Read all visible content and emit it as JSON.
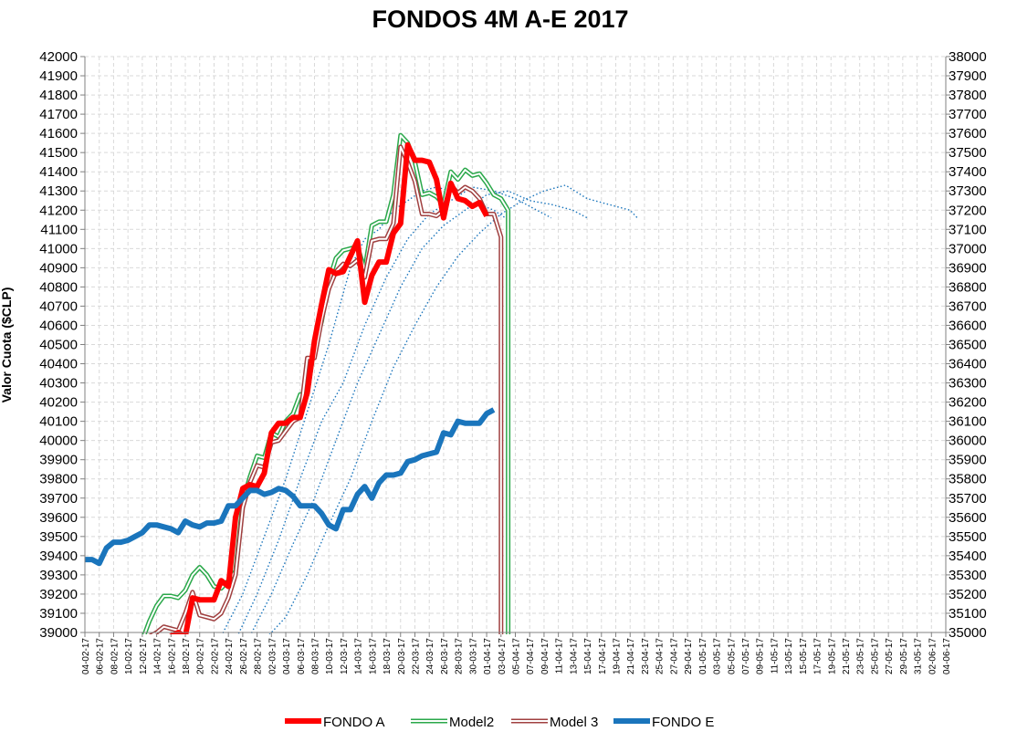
{
  "chart_data": {
    "type": "line",
    "title": "FONDOS 4M A-E 2017",
    "ylabel": "Valor Cuota ($CLP)",
    "xlabel": "",
    "ylim_left": [
      39000,
      42000
    ],
    "ylim_right": [
      35000,
      38000
    ],
    "y_ticks_left": [
      "39000",
      "39100",
      "39200",
      "39300",
      "39400",
      "39500",
      "39600",
      "39700",
      "39800",
      "39900",
      "40000",
      "40100",
      "40200",
      "40300",
      "40400",
      "40500",
      "40600",
      "40700",
      "40800",
      "40900",
      "41000",
      "41100",
      "41200",
      "41300",
      "41400",
      "41500",
      "41600",
      "41700",
      "41800",
      "41900",
      "42000"
    ],
    "y_ticks_right": [
      "35000",
      "35100",
      "35200",
      "35300",
      "35400",
      "35500",
      "35600",
      "35700",
      "35800",
      "35900",
      "36000",
      "36100",
      "36200",
      "36300",
      "36400",
      "36500",
      "36600",
      "36700",
      "36800",
      "36900",
      "37000",
      "37100",
      "37200",
      "37300",
      "37400",
      "37500",
      "37600",
      "37700",
      "37800",
      "37900",
      "38000"
    ],
    "x_ticks": [
      "04-02-17",
      "06-02-17",
      "08-02-17",
      "10-02-17",
      "12-02-17",
      "14-02-17",
      "16-02-17",
      "18-02-17",
      "20-02-17",
      "22-02-17",
      "24-02-17",
      "26-02-17",
      "28-02-17",
      "02-03-17",
      "04-03-17",
      "06-03-17",
      "08-03-17",
      "10-03-17",
      "12-03-17",
      "14-03-17",
      "16-03-17",
      "18-03-17",
      "20-03-17",
      "22-03-17",
      "24-03-17",
      "26-03-17",
      "28-03-17",
      "30-03-17",
      "01-04-17",
      "03-04-17",
      "05-04-17",
      "07-04-17",
      "09-04-17",
      "11-04-17",
      "13-04-17",
      "15-04-17",
      "17-04-17",
      "19-04-17",
      "21-04-17",
      "23-04-17",
      "25-04-17",
      "27-04-17",
      "29-04-17",
      "01-05-17",
      "03-05-17",
      "05-05-17",
      "07-05-17",
      "09-05-17",
      "11-05-17",
      "13-05-17",
      "15-05-17",
      "17-05-17",
      "19-05-17",
      "21-05-17",
      "23-05-17",
      "25-05-17",
      "27-05-17",
      "29-05-17",
      "31-05-17",
      "02-06-17",
      "04-06-17"
    ],
    "grid": true,
    "legend_position": "bottom",
    "series": [
      {
        "name": "FONDO A",
        "axis": "left",
        "color": "#ff0000",
        "style": "thick",
        "points": [
          [
            11,
            38950
          ],
          [
            12,
            38980
          ],
          [
            13,
            39000
          ],
          [
            14,
            38980
          ],
          [
            15,
            39180
          ],
          [
            16,
            39170
          ],
          [
            17,
            39170
          ],
          [
            18,
            39170
          ],
          [
            19,
            39270
          ],
          [
            20,
            39240
          ],
          [
            21,
            39600
          ],
          [
            22,
            39750
          ],
          [
            23,
            39770
          ],
          [
            24,
            39760
          ],
          [
            25,
            39830
          ],
          [
            26,
            40040
          ],
          [
            27,
            40090
          ],
          [
            28,
            40090
          ],
          [
            29,
            40120
          ],
          [
            30,
            40120
          ],
          [
            31,
            40250
          ],
          [
            32,
            40520
          ],
          [
            33,
            40710
          ],
          [
            34,
            40890
          ],
          [
            35,
            40870
          ],
          [
            36,
            40880
          ],
          [
            37,
            40960
          ],
          [
            38,
            41040
          ],
          [
            39,
            40720
          ],
          [
            40,
            40860
          ],
          [
            41,
            40930
          ],
          [
            42,
            40930
          ],
          [
            43,
            41080
          ],
          [
            44,
            41130
          ],
          [
            45,
            41540
          ],
          [
            46,
            41460
          ],
          [
            47,
            41460
          ],
          [
            48,
            41450
          ],
          [
            49,
            41360
          ],
          [
            50,
            41160
          ],
          [
            51,
            41340
          ],
          [
            52,
            41260
          ],
          [
            53,
            41250
          ],
          [
            54,
            41220
          ],
          [
            55,
            41240
          ],
          [
            56,
            41170
          ]
        ]
      },
      {
        "name": "Model2",
        "axis": "left",
        "color": "#2aa84a",
        "style": "double",
        "points": [
          [
            8,
            38960
          ],
          [
            9,
            39060
          ],
          [
            10,
            39140
          ],
          [
            11,
            39190
          ],
          [
            12,
            39190
          ],
          [
            13,
            39180
          ],
          [
            14,
            39220
          ],
          [
            15,
            39300
          ],
          [
            16,
            39340
          ],
          [
            17,
            39300
          ],
          [
            18,
            39240
          ],
          [
            19,
            39230
          ],
          [
            20,
            39270
          ],
          [
            21,
            39320
          ],
          [
            22,
            39680
          ],
          [
            23,
            39810
          ],
          [
            24,
            39920
          ],
          [
            25,
            39910
          ],
          [
            26,
            40040
          ],
          [
            27,
            40020
          ],
          [
            28,
            40100
          ],
          [
            29,
            40140
          ],
          [
            30,
            40240
          ],
          [
            31,
            40240
          ],
          [
            32,
            40500
          ],
          [
            33,
            40620
          ],
          [
            34,
            40830
          ],
          [
            35,
            40950
          ],
          [
            36,
            40990
          ],
          [
            37,
            41000
          ],
          [
            38,
            41010
          ],
          [
            39,
            40890
          ],
          [
            40,
            41120
          ],
          [
            41,
            41140
          ],
          [
            42,
            41140
          ],
          [
            43,
            41280
          ],
          [
            44,
            41590
          ],
          [
            45,
            41550
          ],
          [
            46,
            41450
          ],
          [
            47,
            41280
          ],
          [
            48,
            41290
          ],
          [
            49,
            41270
          ],
          [
            50,
            41230
          ],
          [
            51,
            41400
          ],
          [
            52,
            41360
          ],
          [
            53,
            41410
          ],
          [
            54,
            41380
          ],
          [
            55,
            41390
          ],
          [
            56,
            41340
          ],
          [
            57,
            41280
          ],
          [
            58,
            41260
          ],
          [
            59,
            41200
          ],
          [
            59,
            38960
          ]
        ]
      },
      {
        "name": "Model 3",
        "axis": "left",
        "color": "#a04040",
        "style": "double",
        "points": [
          [
            9,
            38980
          ],
          [
            10,
            39000
          ],
          [
            11,
            39030
          ],
          [
            12,
            39020
          ],
          [
            13,
            39010
          ],
          [
            14,
            39100
          ],
          [
            15,
            39210
          ],
          [
            16,
            39090
          ],
          [
            17,
            39080
          ],
          [
            18,
            39070
          ],
          [
            19,
            39100
          ],
          [
            20,
            39180
          ],
          [
            21,
            39300
          ],
          [
            22,
            39650
          ],
          [
            23,
            39780
          ],
          [
            24,
            39870
          ],
          [
            25,
            39860
          ],
          [
            26,
            39990
          ],
          [
            27,
            40000
          ],
          [
            28,
            40050
          ],
          [
            29,
            40100
          ],
          [
            30,
            40120
          ],
          [
            31,
            40430
          ],
          [
            32,
            40430
          ],
          [
            33,
            40630
          ],
          [
            34,
            40790
          ],
          [
            35,
            40880
          ],
          [
            36,
            40920
          ],
          [
            37,
            40910
          ],
          [
            38,
            40940
          ],
          [
            39,
            40850
          ],
          [
            40,
            41040
          ],
          [
            41,
            41050
          ],
          [
            42,
            41050
          ],
          [
            43,
            41130
          ],
          [
            44,
            41530
          ],
          [
            45,
            41450
          ],
          [
            46,
            41350
          ],
          [
            47,
            41180
          ],
          [
            48,
            41180
          ],
          [
            49,
            41170
          ],
          [
            50,
            41200
          ],
          [
            51,
            41330
          ],
          [
            52,
            41290
          ],
          [
            53,
            41320
          ],
          [
            54,
            41300
          ],
          [
            55,
            41260
          ],
          [
            56,
            41180
          ],
          [
            57,
            41180
          ],
          [
            58,
            41060
          ],
          [
            58,
            38960
          ]
        ]
      },
      {
        "name": "FONDO E",
        "axis": "right",
        "color": "#1a75bc",
        "style": "thick",
        "points": [
          [
            0,
            35380
          ],
          [
            1,
            35380
          ],
          [
            2,
            35360
          ],
          [
            3,
            35440
          ],
          [
            4,
            35470
          ],
          [
            5,
            35470
          ],
          [
            6,
            35480
          ],
          [
            7,
            35500
          ],
          [
            8,
            35520
          ],
          [
            9,
            35560
          ],
          [
            10,
            35560
          ],
          [
            11,
            35550
          ],
          [
            12,
            35540
          ],
          [
            13,
            35520
          ],
          [
            14,
            35580
          ],
          [
            15,
            35560
          ],
          [
            16,
            35550
          ],
          [
            17,
            35570
          ],
          [
            18,
            35570
          ],
          [
            19,
            35580
          ],
          [
            20,
            35660
          ],
          [
            21,
            35660
          ],
          [
            22,
            35700
          ],
          [
            23,
            35740
          ],
          [
            24,
            35740
          ],
          [
            25,
            35720
          ],
          [
            26,
            35730
          ],
          [
            27,
            35750
          ],
          [
            28,
            35740
          ],
          [
            29,
            35710
          ],
          [
            30,
            35660
          ],
          [
            31,
            35660
          ],
          [
            32,
            35660
          ],
          [
            33,
            35620
          ],
          [
            34,
            35560
          ],
          [
            35,
            35540
          ],
          [
            36,
            35640
          ],
          [
            37,
            35640
          ],
          [
            38,
            35720
          ],
          [
            39,
            35760
          ],
          [
            40,
            35700
          ],
          [
            41,
            35780
          ],
          [
            42,
            35820
          ],
          [
            43,
            35820
          ],
          [
            44,
            35830
          ],
          [
            45,
            35890
          ],
          [
            46,
            35900
          ],
          [
            47,
            35920
          ],
          [
            48,
            35930
          ],
          [
            49,
            35940
          ],
          [
            50,
            36040
          ],
          [
            51,
            36030
          ],
          [
            52,
            36100
          ],
          [
            53,
            36090
          ],
          [
            54,
            36090
          ],
          [
            55,
            36090
          ],
          [
            56,
            36140
          ],
          [
            57,
            36160
          ]
        ]
      },
      {
        "name": "",
        "axis": "left",
        "color": "#1a75bc",
        "style": "dotted",
        "points": [
          [
            19,
            38980
          ],
          [
            22,
            39200
          ],
          [
            25,
            39500
          ],
          [
            28,
            39800
          ],
          [
            31,
            40150
          ],
          [
            34,
            40500
          ],
          [
            37,
            40900
          ],
          [
            39,
            41050
          ],
          [
            41,
            41100
          ],
          [
            43,
            41200
          ],
          [
            45,
            41250
          ],
          [
            47,
            41300
          ],
          [
            49,
            41320
          ],
          [
            51,
            41300
          ],
          [
            53,
            41250
          ],
          [
            55,
            41230
          ],
          [
            57,
            41200
          ],
          [
            59,
            41150
          ]
        ]
      },
      {
        "name": "",
        "axis": "left",
        "color": "#1a75bc",
        "style": "dotted",
        "points": [
          [
            21,
            38960
          ],
          [
            24,
            39200
          ],
          [
            27,
            39480
          ],
          [
            30,
            39800
          ],
          [
            33,
            40100
          ],
          [
            36,
            40300
          ],
          [
            39,
            40600
          ],
          [
            42,
            40850
          ],
          [
            45,
            41050
          ],
          [
            48,
            41180
          ],
          [
            51,
            41250
          ],
          [
            54,
            41320
          ],
          [
            57,
            41300
          ],
          [
            60,
            41260
          ],
          [
            63,
            41200
          ],
          [
            65,
            41160
          ]
        ]
      },
      {
        "name": "",
        "axis": "left",
        "color": "#1a75bc",
        "style": "dotted",
        "points": [
          [
            23,
            38980
          ],
          [
            26,
            39200
          ],
          [
            29,
            39460
          ],
          [
            32,
            39700
          ],
          [
            35,
            40000
          ],
          [
            38,
            40300
          ],
          [
            41,
            40550
          ],
          [
            44,
            40800
          ],
          [
            47,
            41000
          ],
          [
            50,
            41120
          ],
          [
            53,
            41200
          ],
          [
            56,
            41280
          ],
          [
            59,
            41300
          ],
          [
            62,
            41250
          ],
          [
            65,
            41230
          ],
          [
            68,
            41200
          ],
          [
            70,
            41160
          ]
        ]
      },
      {
        "name": "",
        "axis": "left",
        "color": "#1a75bc",
        "style": "dotted",
        "points": [
          [
            25,
            38960
          ],
          [
            28,
            39080
          ],
          [
            31,
            39300
          ],
          [
            34,
            39560
          ],
          [
            37,
            39800
          ],
          [
            40,
            40100
          ],
          [
            43,
            40380
          ],
          [
            46,
            40600
          ],
          [
            49,
            40800
          ],
          [
            52,
            40960
          ],
          [
            55,
            41080
          ],
          [
            58,
            41180
          ],
          [
            61,
            41250
          ],
          [
            64,
            41300
          ],
          [
            67,
            41330
          ],
          [
            70,
            41260
          ],
          [
            73,
            41230
          ],
          [
            76,
            41200
          ],
          [
            77,
            41160
          ]
        ]
      }
    ]
  }
}
